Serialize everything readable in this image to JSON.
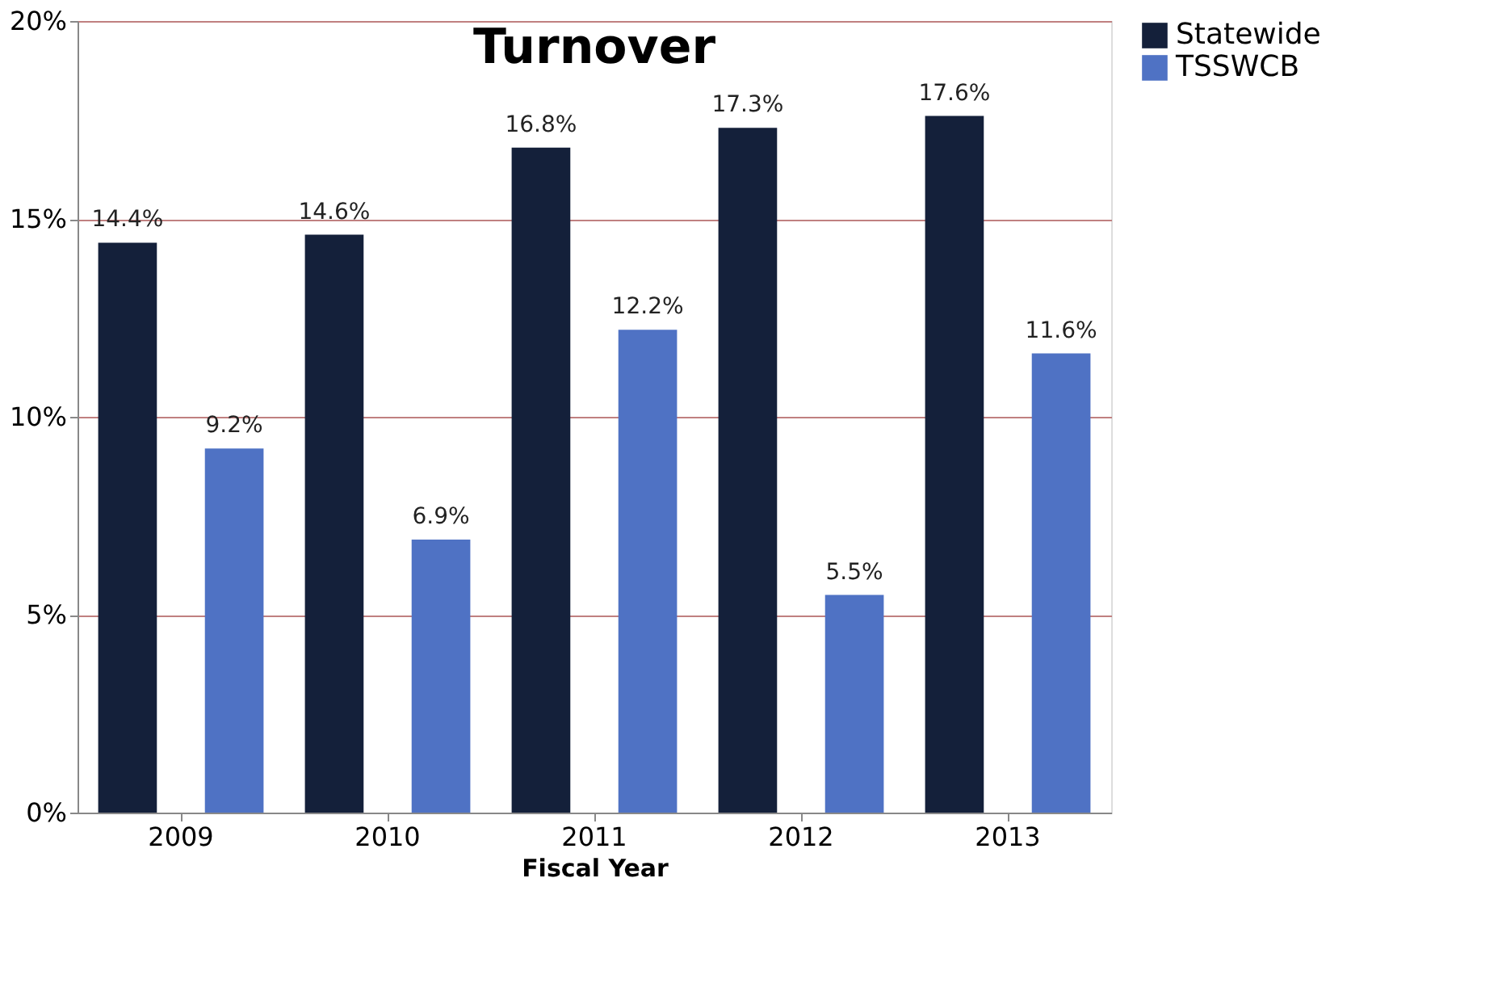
{
  "chart_data": {
    "type": "bar",
    "title": "Turnover",
    "xlabel": "Fiscal Year",
    "categories": [
      "2009",
      "2010",
      "2011",
      "2012",
      "2013"
    ],
    "series": [
      {
        "name": "Statewide",
        "color": "#14203a",
        "values": [
          14.4,
          14.6,
          16.8,
          17.3,
          17.6
        ],
        "value_labels": [
          "14.4%",
          "14.6%",
          "16.8%",
          "17.3%",
          "17.6%"
        ]
      },
      {
        "name": "TSSWCB",
        "color": "#4f72c4",
        "values": [
          9.2,
          6.9,
          12.2,
          5.5,
          11.6
        ],
        "value_labels": [
          "9.2%",
          "6.9%",
          "12.2%",
          "5.5%",
          "11.6%"
        ]
      }
    ],
    "ylim": [
      0,
      20
    ],
    "yticks": [
      {
        "value": 0,
        "label": "0%"
      },
      {
        "value": 5,
        "label": "5%"
      },
      {
        "value": 10,
        "label": "10%"
      },
      {
        "value": 15,
        "label": "15%"
      },
      {
        "value": 20,
        "label": "20%"
      }
    ],
    "grid": "y",
    "legend": "right"
  }
}
